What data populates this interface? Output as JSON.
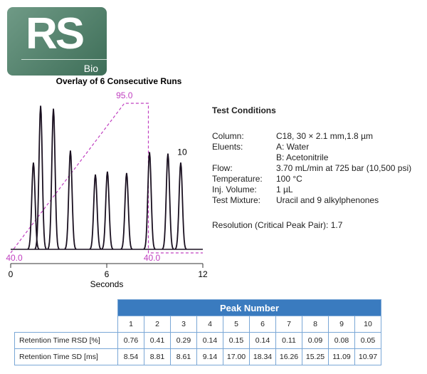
{
  "logo": {
    "text": "RS",
    "sub": "Bio"
  },
  "chart_data": {
    "type": "chromatogram",
    "title": "Overlay of 6 Consecutive Runs",
    "x_label": "Seconds",
    "xlim": [
      0,
      12
    ],
    "xticks": [
      0,
      6,
      12
    ],
    "color": "#1a1020",
    "annotation": "10",
    "x": [
      1.42,
      1.87,
      2.67,
      3.73,
      5.29,
      6.04,
      7.24,
      8.67,
      9.82,
      10.62
    ],
    "values": [
      58,
      96,
      94,
      66,
      50,
      52,
      51,
      65,
      64,
      58
    ],
    "gradient": {
      "color": "#c040c0",
      "x": [
        0,
        7.1,
        8.6,
        8.6,
        12
      ],
      "values": [
        40,
        95,
        95,
        40,
        40
      ],
      "value_labels": [
        "40.0",
        "95.0",
        null,
        "40.0",
        null
      ]
    }
  },
  "test_conditions": {
    "title": "Test Conditions",
    "rows": [
      {
        "label": "Column:",
        "lines": [
          "C18, 30 × 2.1 mm,1.8 µm"
        ]
      },
      {
        "label": "Eluents:",
        "lines": [
          "A: Water",
          "B: Acetonitrile"
        ]
      },
      {
        "label": "Flow:",
        "lines": [
          "3.70 mL/min at 725 bar (10,500 psi)"
        ]
      },
      {
        "label": "Temperature:",
        "lines": [
          "100 °C"
        ]
      },
      {
        "label": "Inj. Volume:",
        "lines": [
          "1 µL"
        ]
      },
      {
        "label": "Test Mixture:",
        "lines": [
          "Uracil and 9 alkylphenones"
        ]
      }
    ],
    "resolution": "Resolution (Critical Peak Pair): 1.7"
  },
  "table": {
    "title": "Peak Number",
    "columns": [
      "1",
      "2",
      "3",
      "4",
      "5",
      "6",
      "7",
      "8",
      "9",
      "10"
    ],
    "rows": [
      {
        "label": "Retention Time RSD [%]",
        "cells": [
          "0.76",
          "0.41",
          "0.29",
          "0.14",
          "0.15",
          "0.14",
          "0.11",
          "0.09",
          "0.08",
          "0.05"
        ]
      },
      {
        "label": "Retention Time SD [ms]",
        "cells": [
          "8.54",
          "8.81",
          "8.61",
          "9.14",
          "17.00",
          "18.34",
          "16.26",
          "15.25",
          "11.09",
          "10.97"
        ]
      }
    ]
  }
}
